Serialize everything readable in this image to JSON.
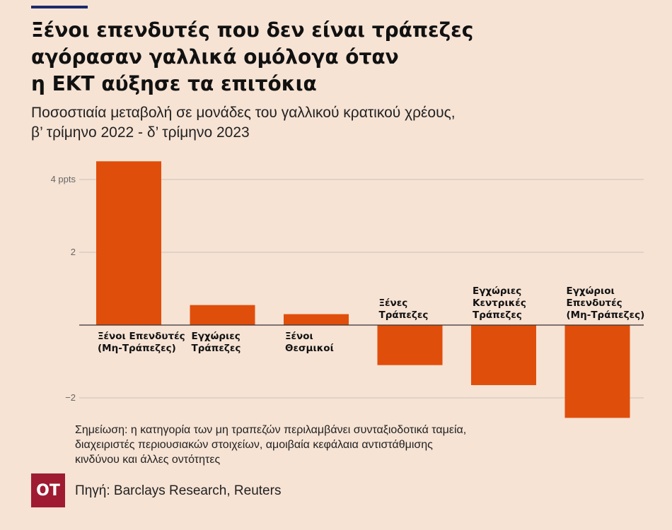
{
  "title_lines": [
    "Ξένοι επενδυτές που δεν είναι τράπεζες",
    "αγόρασαν γαλλικά ομόλογα όταν",
    "η ΕΚΤ αύξησε τα επιτόκια"
  ],
  "subtitle_lines": [
    "Ποσοστιαία μεταβολή σε μονάδες του γαλλικού κρατικού χρέους,",
    "β’ τρίμηνο 2022 - δ’ τρίμηνο 2023"
  ],
  "note_lines": [
    "Σημείωση: η κατηγορία των μη τραπεζών περιλαμβάνει συνταξιοδοτικά ταμεία,",
    "διαχειριστές περιουσιακών στοιχείων, αμοιβαία κεφάλαια αντιστάθμισης",
    "κινδύνου και άλλες οντότητες"
  ],
  "source": "Πηγή: Barclays Research, Reuters",
  "logo_text": "OT",
  "chart_data": {
    "type": "bar",
    "unit": "ppts",
    "categories": [
      [
        "Ξένοι Επενδυτές",
        "(Μη-Τράπεζες)"
      ],
      [
        "Εγχώριες",
        "Τράπεζες"
      ],
      [
        "Ξένοι",
        "Θεσμικοί"
      ],
      [
        "Ξένες",
        "Τράπεζες"
      ],
      [
        "Εγχώριες",
        "Κεντρικές",
        "Τράπεζες"
      ],
      [
        "Εγχώριοι",
        "Επενδυτές",
        "(Μη-Τράπεζες)"
      ]
    ],
    "values": [
      4.5,
      0.55,
      0.3,
      -1.1,
      -1.65,
      -2.55
    ],
    "ylim": [
      -2.7,
      4.6
    ],
    "yticks": [
      {
        "value": 4,
        "label": "4 ppts"
      },
      {
        "value": 2,
        "label": "2"
      },
      {
        "value": -2,
        "label": "−2"
      }
    ],
    "grid": true,
    "bar_color": "#e04e0b",
    "grid_color": "#c9c2bc"
  }
}
